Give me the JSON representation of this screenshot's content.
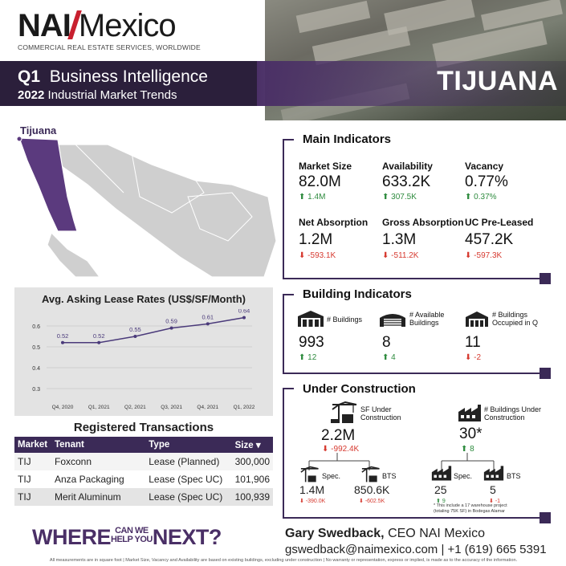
{
  "header": {
    "logo_nai": "NAI",
    "logo_mexico": "Mexico",
    "tagline": "COMMERCIAL REAL ESTATE SERVICES, WORLDWIDE",
    "quarter": "Q1",
    "title": "Business Intelligence",
    "year": "2022",
    "subtitle": "Industrial Market Trends",
    "city": "TIJUANA"
  },
  "map": {
    "label": "Tijuana",
    "highlight_color": "#5b3a7e"
  },
  "main_indicators": {
    "title": "Main Indicators",
    "items": [
      {
        "label": "Market Size",
        "value": "82.0M",
        "change": "1.4M",
        "direction": "up"
      },
      {
        "label": "Availability",
        "value": "633.2K",
        "change": "307.5K",
        "direction": "up"
      },
      {
        "label": "Vacancy",
        "value": "0.77%",
        "change": "0.37%",
        "direction": "up"
      },
      {
        "label": "Net Absorption",
        "value": "1.2M",
        "change": "-593.1K",
        "direction": "down"
      },
      {
        "label": "Gross Absorption",
        "value": "1.3M",
        "change": "-511.2K",
        "direction": "down"
      },
      {
        "label": "UC Pre-Leased",
        "value": "457.2K",
        "change": "-597.3K",
        "direction": "down"
      }
    ]
  },
  "building_indicators": {
    "title": "Building Indicators",
    "items": [
      {
        "label": "# Buildings",
        "value": "993",
        "change": "12",
        "direction": "up"
      },
      {
        "label": "# Available Buildings",
        "value": "8",
        "change": "4",
        "direction": "up"
      },
      {
        "label": "# Buildings Occupied in Q",
        "value": "11",
        "change": "-2",
        "direction": "down"
      }
    ]
  },
  "under_construction": {
    "title": "Under Construction",
    "sf_label": "SF Under Construction",
    "sf_value": "2.2M",
    "sf_change": "-992.4K",
    "bldg_label": "# Buildings Under Construction",
    "bldg_value": "30*",
    "bldg_change": "8",
    "spec_label": "Spec.",
    "bts_label": "BTS",
    "sf_spec_value": "1.4M",
    "sf_spec_change": "-390.0K",
    "sf_bts_value": "850.6K",
    "sf_bts_change": "-602.5K",
    "bldg_spec_value": "25",
    "bldg_spec_change": "9",
    "bldg_bts_value": "5",
    "bldg_bts_change": "-1",
    "footnote": "* This include a 17 warehouse project (totaling 75K SF) in Bodegas Alamar"
  },
  "chart_data": {
    "type": "line",
    "title": "Avg. Asking Lease Rates (US$/SF/Month)",
    "categories": [
      "Q4, 2020",
      "Q1, 2021",
      "Q2, 2021",
      "Q3, 2021",
      "Q4, 2021",
      "Q1, 2022"
    ],
    "values": [
      0.52,
      0.52,
      0.55,
      0.59,
      0.61,
      0.64
    ],
    "ylim": [
      0.25,
      0.65
    ],
    "yticks": [
      "0.3",
      "0.4",
      "0.5",
      "0.6"
    ],
    "grid": true,
    "color": "#4a3a7a"
  },
  "transactions": {
    "title": "Registered Transactions",
    "headers": [
      "Market",
      "Tenant",
      "Type",
      "Size ▾"
    ],
    "rows": [
      [
        "TIJ",
        "Foxconn",
        "Lease (Planned)",
        "300,000"
      ],
      [
        "TIJ",
        "Anza Packaging",
        "Lease (Spec UC)",
        "101,906"
      ],
      [
        "TIJ",
        "Merit Aluminum",
        "Lease (Spec UC)",
        "100,939"
      ]
    ]
  },
  "footer": {
    "slogan_where": "WHERE",
    "slogan_can_we": "CAN WE",
    "slogan_help_you": "HELP YOU",
    "slogan_next": "NEXT?",
    "contact_name": "Gary Swedback,",
    "contact_role": " CEO NAI Mexico",
    "contact_info": "gswedback@naimexico.com | +1 (619) 665 5391",
    "disclaimer": "All measurements are in square foot | Market Size, Vacancy and Availability are based on existing buildings, excluding under construction | No warranty or representation, express or implied, is made as to the accuracy of the information."
  }
}
